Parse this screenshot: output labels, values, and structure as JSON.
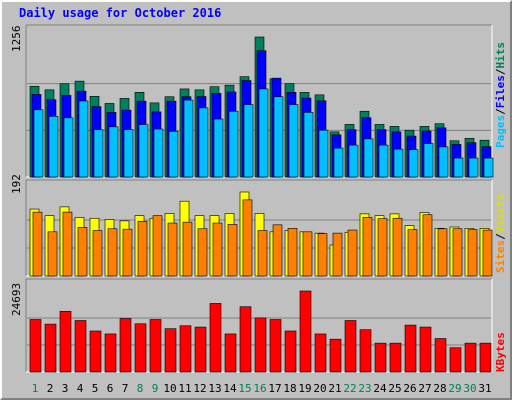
{
  "chart_data": [
    {
      "id": "hits_files_pages",
      "type": "bar",
      "title": "Daily usage for October 2016",
      "ymax_label": "1256",
      "ylim": [
        0,
        1256
      ],
      "categories": [
        "1",
        "2",
        "3",
        "4",
        "5",
        "6",
        "7",
        "8",
        "9",
        "10",
        "11",
        "12",
        "13",
        "14",
        "15",
        "16",
        "17",
        "18",
        "19",
        "20",
        "21",
        "22",
        "23",
        "24",
        "25",
        "26",
        "27",
        "28",
        "29",
        "30",
        "31"
      ],
      "series": [
        {
          "name": "Hits",
          "color": "#00805c",
          "values": [
            814,
            782,
            837,
            860,
            724,
            660,
            705,
            760,
            665,
            720,
            790,
            782,
            810,
            824,
            900,
            1256,
            881,
            837,
            759,
            737,
            405,
            472,
            590,
            472,
            454,
            420,
            454,
            478,
            325,
            347,
            330
          ]
        },
        {
          "name": "Files",
          "color": "#0000ff",
          "values": [
            741,
            693,
            732,
            770,
            631,
            580,
            600,
            680,
            584,
            680,
            720,
            722,
            750,
            763,
            865,
            1133,
            887,
            760,
            708,
            683,
            378,
            425,
            531,
            425,
            404,
            367,
            413,
            441,
            292,
            308,
            272
          ]
        },
        {
          "name": "Pages",
          "color": "#00c0ff",
          "values": [
            603,
            544,
            531,
            682,
            425,
            450,
            425,
            470,
            430,
            410,
            690,
            620,
            520,
            590,
            650,
            790,
            720,
            650,
            580,
            420,
            259,
            286,
            342,
            286,
            250,
            245,
            300,
            270,
            170,
            170,
            170
          ]
        }
      ]
    },
    {
      "id": "sites_visits",
      "type": "bar",
      "ymax_label": "192",
      "ylim": [
        0,
        192
      ],
      "categories": [
        "1",
        "2",
        "3",
        "4",
        "5",
        "6",
        "7",
        "8",
        "9",
        "10",
        "11",
        "12",
        "13",
        "14",
        "15",
        "16",
        "17",
        "18",
        "19",
        "20",
        "21",
        "22",
        "23",
        "24",
        "25",
        "26",
        "27",
        "28",
        "29",
        "30",
        "31"
      ],
      "series": [
        {
          "name": "Visits",
          "color": "#ffff00",
          "values": [
            153,
            138,
            158,
            134,
            132,
            129,
            126,
            138,
            132,
            143,
            171,
            138,
            138,
            143,
            192,
            143,
            101,
            104,
            101,
            98,
            71,
            100,
            142,
            138,
            142,
            115,
            145,
            109,
            112,
            109,
            109
          ]
        },
        {
          "name": "Sites",
          "color": "#ff8000",
          "values": [
            146,
            101,
            146,
            111,
            104,
            108,
            107,
            125,
            138,
            121,
            123,
            108,
            121,
            118,
            174,
            104,
            117,
            109,
            101,
            97,
            98,
            105,
            134,
            131,
            132,
            106,
            140,
            108,
            108,
            106,
            105
          ]
        }
      ]
    },
    {
      "id": "kbytes",
      "type": "bar",
      "ymax_label": "24693",
      "ylim": [
        0,
        24693
      ],
      "categories": [
        "1",
        "2",
        "3",
        "4",
        "5",
        "6",
        "7",
        "8",
        "9",
        "10",
        "11",
        "12",
        "13",
        "14",
        "15",
        "16",
        "17",
        "18",
        "19",
        "20",
        "21",
        "22",
        "23",
        "24",
        "25",
        "26",
        "27",
        "28",
        "29",
        "30",
        "31"
      ],
      "series": [
        {
          "name": "KBytes",
          "color": "#ff0000",
          "values": [
            16000,
            14600,
            18500,
            15700,
            12500,
            11600,
            16300,
            14700,
            16000,
            13200,
            14100,
            13700,
            20900,
            11600,
            19900,
            16500,
            16000,
            12500,
            24693,
            11600,
            10000,
            15700,
            12900,
            8800,
            8800,
            14300,
            13700,
            10200,
            7400,
            8800,
            8800
          ]
        }
      ]
    }
  ],
  "legend": {
    "top": [
      "Pages",
      "/",
      "Files",
      "/",
      "Hits"
    ],
    "middle": [
      "Sites",
      "/",
      "Visits"
    ],
    "bottom": [
      "KBytes"
    ]
  },
  "weekend_days": [
    "1",
    "8",
    "9",
    "15",
    "16",
    "22",
    "23",
    "29",
    "30"
  ],
  "colors": {
    "background": "#c0c0c0",
    "title": "#0000ff",
    "weekday_label": "#000000",
    "weekend_label": "#00805c",
    "grid": "#808080",
    "pages": "#00c0ff",
    "files": "#0000ff",
    "hits": "#00805c",
    "visits": "#ffff00",
    "sites": "#ff8000",
    "kbytes": "#ff0000"
  }
}
